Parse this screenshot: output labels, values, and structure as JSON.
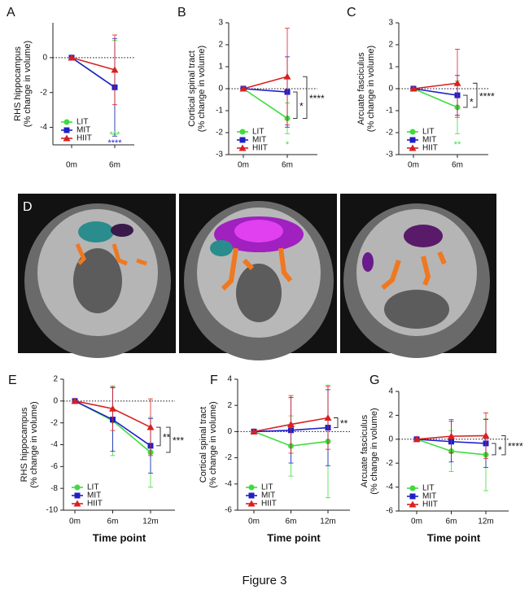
{
  "figure_caption": "Figure 3",
  "brain_panel_label": "D",
  "chart_data": [
    {
      "type": "line",
      "panel": "A",
      "ylabel": [
        "RHS hippocampus",
        "(% change in volume)"
      ],
      "categories": [
        "0m",
        "6m"
      ],
      "ylim": [
        -5,
        2
      ],
      "yticks": [
        -4,
        -2,
        0
      ],
      "zero_line": true,
      "legend": "lower left",
      "series": [
        {
          "name": "LIT",
          "color": "#3ddc3d",
          "marker": "circle",
          "values": [
            0,
            -1.7
          ],
          "errors": [
            0,
            2.7
          ]
        },
        {
          "name": "MIT",
          "color": "#1f1fc8",
          "marker": "square",
          "values": [
            0,
            -1.7
          ],
          "errors": [
            0,
            2.8
          ]
        },
        {
          "name": "HIIT",
          "color": "#d92020",
          "marker": "triangle",
          "values": [
            0,
            -0.7
          ],
          "errors": [
            0,
            2.0
          ]
        }
      ],
      "annotations": [
        {
          "text": "***",
          "color": "#3ddc3d"
        },
        {
          "text": "****",
          "color": "#1f1fc8"
        }
      ]
    },
    {
      "type": "line",
      "panel": "B",
      "ylabel": [
        "Cortical spinal tract",
        "(% change in volume)"
      ],
      "categories": [
        "0m",
        "6m"
      ],
      "ylim": [
        -3,
        3
      ],
      "yticks": [
        -3,
        -2,
        -1,
        0,
        1,
        2,
        3
      ],
      "zero_line": true,
      "legend": "lower left",
      "series": [
        {
          "name": "LIT",
          "color": "#3ddc3d",
          "marker": "circle",
          "values": [
            0,
            -1.35
          ],
          "errors": [
            0,
            0.7
          ]
        },
        {
          "name": "MIT",
          "color": "#1f1fc8",
          "marker": "square",
          "values": [
            0,
            -0.15
          ],
          "errors": [
            0,
            1.6
          ]
        },
        {
          "name": "HIIT",
          "color": "#d92020",
          "marker": "triangle",
          "values": [
            0,
            0.55
          ],
          "errors": [
            0,
            2.2
          ]
        }
      ],
      "annotations": [
        {
          "text": "*",
          "color": "#3ddc3d"
        }
      ],
      "brackets": [
        {
          "text": "*",
          "between": [
            "MIT",
            "LIT"
          ]
        },
        {
          "text": "****",
          "between": [
            "HIIT",
            "LIT"
          ]
        }
      ]
    },
    {
      "type": "line",
      "panel": "C",
      "ylabel": [
        "Arcuate fasciculus",
        "(% change in volume)"
      ],
      "categories": [
        "0m",
        "6m"
      ],
      "ylim": [
        -3,
        3
      ],
      "yticks": [
        -3,
        -2,
        -1,
        0,
        1,
        2,
        3
      ],
      "zero_line": true,
      "legend": "lower left",
      "series": [
        {
          "name": "LIT",
          "color": "#3ddc3d",
          "marker": "circle",
          "values": [
            0,
            -0.85
          ],
          "errors": [
            0,
            1.2
          ]
        },
        {
          "name": "MIT",
          "color": "#1f1fc8",
          "marker": "square",
          "values": [
            0,
            -0.3
          ],
          "errors": [
            0,
            0.9
          ]
        },
        {
          "name": "HIIT",
          "color": "#d92020",
          "marker": "triangle",
          "values": [
            0,
            0.25
          ],
          "errors": [
            0,
            1.55
          ]
        }
      ],
      "annotations": [
        {
          "text": "**",
          "color": "#3ddc3d"
        }
      ],
      "brackets": [
        {
          "text": "*",
          "between": [
            "MIT",
            "LIT"
          ]
        },
        {
          "text": "****",
          "between": [
            "HIIT",
            "LIT"
          ]
        }
      ]
    },
    {
      "type": "line",
      "panel": "E",
      "ylabel": [
        "RHS hippocampus",
        "(% change in volume)"
      ],
      "xlabel": "Time point",
      "categories": [
        "0m",
        "6m",
        "12m"
      ],
      "ylim": [
        -10,
        2
      ],
      "yticks": [
        -10,
        -8,
        -6,
        -4,
        -2,
        0,
        2
      ],
      "zero_line": true,
      "legend": "lower left",
      "series": [
        {
          "name": "LIT",
          "color": "#3ddc3d",
          "marker": "circle",
          "values": [
            0,
            -1.8,
            -4.7
          ],
          "errors": [
            0,
            3.2,
            3.2
          ]
        },
        {
          "name": "MIT",
          "color": "#1f1fc8",
          "marker": "square",
          "values": [
            0,
            -1.7,
            -4.1
          ],
          "errors": [
            0,
            2.9,
            2.5
          ]
        },
        {
          "name": "HIIT",
          "color": "#d92020",
          "marker": "triangle",
          "values": [
            0,
            -0.7,
            -2.4
          ],
          "errors": [
            0,
            2.0,
            2.6
          ]
        }
      ],
      "brackets": [
        {
          "text": "**",
          "between": [
            "HIIT",
            "MIT"
          ]
        },
        {
          "text": "***",
          "between": [
            "HIIT",
            "LIT"
          ]
        }
      ]
    },
    {
      "type": "line",
      "panel": "F",
      "ylabel": [
        "Cortical spinal tract",
        "(% change in volume)"
      ],
      "xlabel": "Time point",
      "categories": [
        "0m",
        "6m",
        "12m"
      ],
      "ylim": [
        -6,
        4
      ],
      "yticks": [
        -6,
        -4,
        -2,
        0,
        2,
        4
      ],
      "zero_line": true,
      "legend": "lower left",
      "series": [
        {
          "name": "LIT",
          "color": "#3ddc3d",
          "marker": "circle",
          "values": [
            0,
            -1.1,
            -0.75
          ],
          "errors": [
            0,
            2.3,
            4.3
          ]
        },
        {
          "name": "MIT",
          "color": "#1f1fc8",
          "marker": "square",
          "values": [
            0,
            0.1,
            0.3
          ],
          "errors": [
            0,
            2.5,
            2.9
          ]
        },
        {
          "name": "HIIT",
          "color": "#d92020",
          "marker": "triangle",
          "values": [
            0,
            0.55,
            1.05
          ],
          "errors": [
            0,
            2.2,
            2.4
          ]
        }
      ],
      "brackets": [
        {
          "text": "**",
          "between": [
            "HIIT",
            "MIT"
          ]
        }
      ]
    },
    {
      "type": "line",
      "panel": "G",
      "ylabel": [
        "Arcuate fasciculus",
        "(% change in volume)"
      ],
      "xlabel": "Time point",
      "categories": [
        "0m",
        "6m",
        "12m"
      ],
      "ylim": [
        -6,
        4
      ],
      "yticks": [
        -6,
        -4,
        -2,
        0,
        2,
        4
      ],
      "zero_line": true,
      "legend": "lower left",
      "series": [
        {
          "name": "LIT",
          "color": "#3ddc3d",
          "marker": "circle",
          "values": [
            0,
            -1.0,
            -1.3
          ],
          "errors": [
            0,
            1.7,
            3.0
          ]
        },
        {
          "name": "MIT",
          "color": "#1f1fc8",
          "marker": "square",
          "values": [
            0,
            -0.2,
            -0.35
          ],
          "errors": [
            0,
            1.7,
            2.0
          ]
        },
        {
          "name": "HIIT",
          "color": "#d92020",
          "marker": "triangle",
          "values": [
            0,
            0.25,
            0.3
          ],
          "errors": [
            0,
            1.4,
            1.9
          ]
        }
      ],
      "brackets": [
        {
          "text": "*",
          "between": [
            "MIT",
            "LIT"
          ]
        },
        {
          "text": "****",
          "between": [
            "HIIT",
            "LIT"
          ]
        }
      ]
    }
  ]
}
